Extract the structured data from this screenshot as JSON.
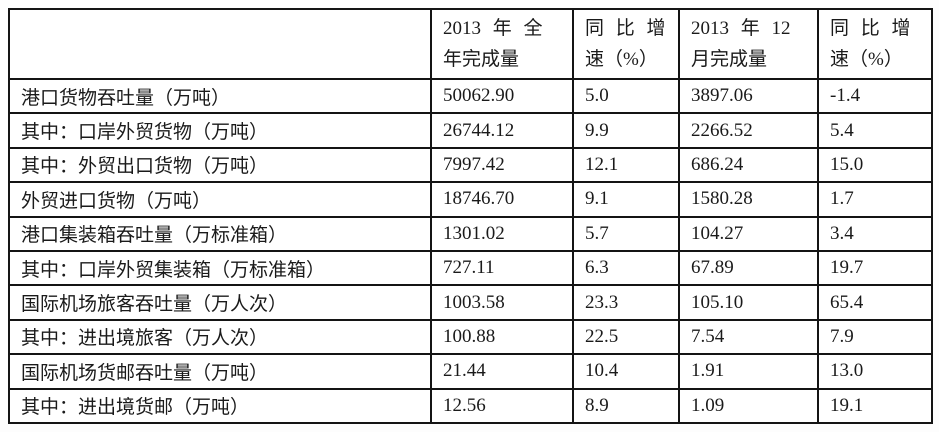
{
  "table": {
    "columns": [
      "",
      "2013 年 全\n年完成量",
      "同 比 增\n速（%）",
      "2013 年 12\n月完成量",
      "同 比 增\n速（%）"
    ],
    "rows": [
      {
        "label": "港口货物吞吐量（万吨）",
        "values": [
          "50062.90",
          "5.0",
          "3897.06",
          "-1.4"
        ]
      },
      {
        "label": "其中：口岸外贸货物（万吨）",
        "values": [
          "26744.12",
          "9.9",
          "2266.52",
          "5.4"
        ]
      },
      {
        "label": "其中：外贸出口货物（万吨）",
        "values": [
          "7997.42",
          "12.1",
          "686.24",
          "15.0"
        ]
      },
      {
        "label": "外贸进口货物（万吨）",
        "values": [
          "18746.70",
          "9.1",
          "1580.28",
          "1.7"
        ]
      },
      {
        "label": "港口集装箱吞吐量（万标准箱）",
        "values": [
          "1301.02",
          "5.7",
          "104.27",
          "3.4"
        ]
      },
      {
        "label": "其中：口岸外贸集装箱（万标准箱）",
        "values": [
          "727.11",
          "6.3",
          "67.89",
          "19.7"
        ]
      },
      {
        "label": "国际机场旅客吞吐量（万人次）",
        "values": [
          "1003.58",
          "23.3",
          "105.10",
          "65.4"
        ]
      },
      {
        "label": "其中：进出境旅客（万人次）",
        "values": [
          "100.88",
          "22.5",
          "7.54",
          "7.9"
        ]
      },
      {
        "label": "国际机场货邮吞吐量（万吨）",
        "values": [
          "21.44",
          "10.4",
          "1.91",
          "13.0"
        ]
      },
      {
        "label": "其中：进出境货邮（万吨）",
        "values": [
          "12.56",
          "8.9",
          "1.09",
          "19.1"
        ]
      }
    ]
  }
}
